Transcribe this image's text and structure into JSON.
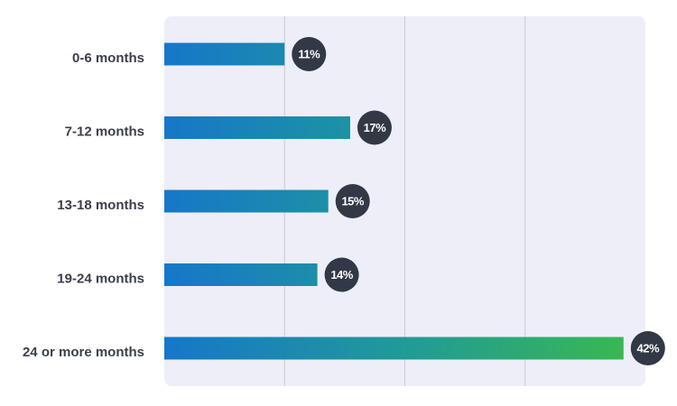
{
  "chart_data": {
    "type": "bar",
    "orientation": "horizontal",
    "categories": [
      "0-6 months",
      "7-12 months",
      "13-18 months",
      "19-24 months",
      "24 or more months"
    ],
    "values": [
      11,
      17,
      15,
      14,
      42
    ],
    "value_labels": [
      "11%",
      "17%",
      "15%",
      "14%",
      "42%"
    ],
    "colors": [
      "#1677c9",
      "#1f9b98",
      "#3bba4c"
    ],
    "xlim": [
      0,
      44
    ],
    "xticks": [
      11,
      22,
      33
    ],
    "grid": true
  }
}
